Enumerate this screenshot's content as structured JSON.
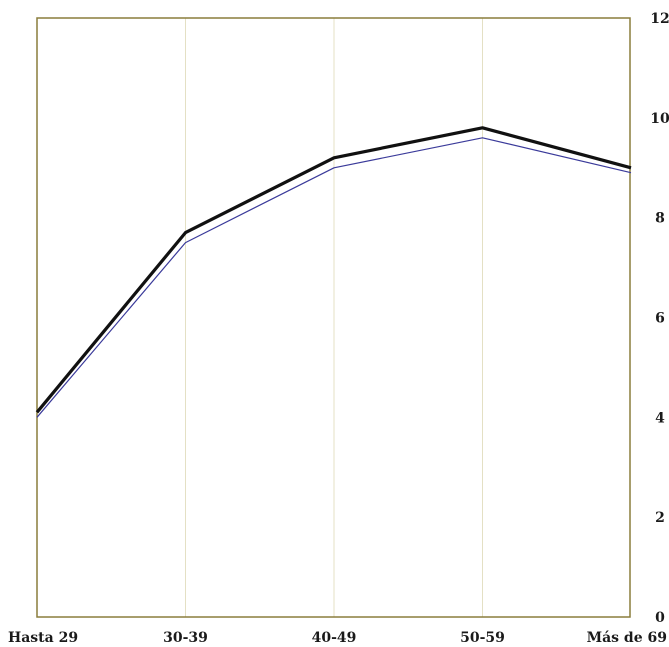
{
  "chart_data": {
    "type": "line",
    "categories": [
      "Hasta 29",
      "30-39",
      "40-49",
      "50-59",
      "Más de 69"
    ],
    "series": [
      {
        "color": "#111111",
        "values": [
          4.1,
          7.7,
          9.2,
          9.8,
          9.0
        ]
      },
      {
        "color": "#3a3a9a",
        "values": [
          4.0,
          7.5,
          9.0,
          9.6,
          8.9
        ]
      }
    ],
    "yticks": [
      "0",
      "2",
      "4",
      "6",
      "8",
      "10",
      "12"
    ],
    "ylim": [
      0,
      12
    ],
    "y_axis_side": "right",
    "grid": "vertical",
    "colors": {
      "frame": "#8a7d3c",
      "grid": "#e4e0c4"
    }
  }
}
